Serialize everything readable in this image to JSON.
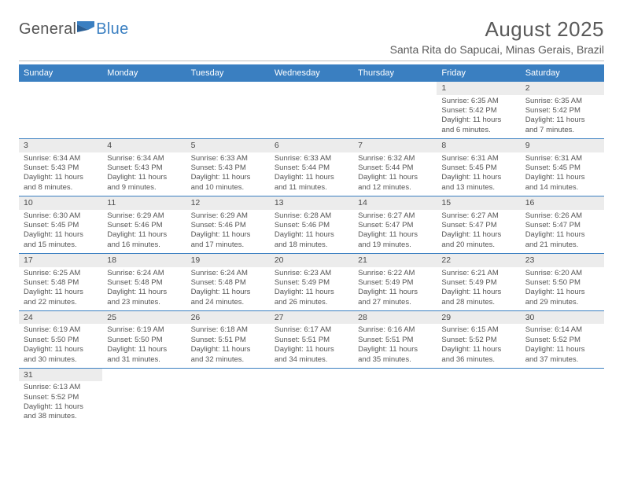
{
  "brand": {
    "word1": "General",
    "word2": "Blue"
  },
  "title": "August 2025",
  "location": "Santa Rita do Sapucai, Minas Gerais, Brazil",
  "colors": {
    "header_bg": "#3a7fc1",
    "header_fg": "#ffffff",
    "day_num_bg": "#ececec",
    "text": "#555555",
    "row_border": "#3a7fc1"
  },
  "weekdays": [
    "Sunday",
    "Monday",
    "Tuesday",
    "Wednesday",
    "Thursday",
    "Friday",
    "Saturday"
  ],
  "weeks": [
    [
      null,
      null,
      null,
      null,
      null,
      {
        "n": "1",
        "sr": "6:35 AM",
        "ss": "5:42 PM",
        "dl": "11 hours and 6 minutes."
      },
      {
        "n": "2",
        "sr": "6:35 AM",
        "ss": "5:42 PM",
        "dl": "11 hours and 7 minutes."
      }
    ],
    [
      {
        "n": "3",
        "sr": "6:34 AM",
        "ss": "5:43 PM",
        "dl": "11 hours and 8 minutes."
      },
      {
        "n": "4",
        "sr": "6:34 AM",
        "ss": "5:43 PM",
        "dl": "11 hours and 9 minutes."
      },
      {
        "n": "5",
        "sr": "6:33 AM",
        "ss": "5:43 PM",
        "dl": "11 hours and 10 minutes."
      },
      {
        "n": "6",
        "sr": "6:33 AM",
        "ss": "5:44 PM",
        "dl": "11 hours and 11 minutes."
      },
      {
        "n": "7",
        "sr": "6:32 AM",
        "ss": "5:44 PM",
        "dl": "11 hours and 12 minutes."
      },
      {
        "n": "8",
        "sr": "6:31 AM",
        "ss": "5:45 PM",
        "dl": "11 hours and 13 minutes."
      },
      {
        "n": "9",
        "sr": "6:31 AM",
        "ss": "5:45 PM",
        "dl": "11 hours and 14 minutes."
      }
    ],
    [
      {
        "n": "10",
        "sr": "6:30 AM",
        "ss": "5:45 PM",
        "dl": "11 hours and 15 minutes."
      },
      {
        "n": "11",
        "sr": "6:29 AM",
        "ss": "5:46 PM",
        "dl": "11 hours and 16 minutes."
      },
      {
        "n": "12",
        "sr": "6:29 AM",
        "ss": "5:46 PM",
        "dl": "11 hours and 17 minutes."
      },
      {
        "n": "13",
        "sr": "6:28 AM",
        "ss": "5:46 PM",
        "dl": "11 hours and 18 minutes."
      },
      {
        "n": "14",
        "sr": "6:27 AM",
        "ss": "5:47 PM",
        "dl": "11 hours and 19 minutes."
      },
      {
        "n": "15",
        "sr": "6:27 AM",
        "ss": "5:47 PM",
        "dl": "11 hours and 20 minutes."
      },
      {
        "n": "16",
        "sr": "6:26 AM",
        "ss": "5:47 PM",
        "dl": "11 hours and 21 minutes."
      }
    ],
    [
      {
        "n": "17",
        "sr": "6:25 AM",
        "ss": "5:48 PM",
        "dl": "11 hours and 22 minutes."
      },
      {
        "n": "18",
        "sr": "6:24 AM",
        "ss": "5:48 PM",
        "dl": "11 hours and 23 minutes."
      },
      {
        "n": "19",
        "sr": "6:24 AM",
        "ss": "5:48 PM",
        "dl": "11 hours and 24 minutes."
      },
      {
        "n": "20",
        "sr": "6:23 AM",
        "ss": "5:49 PM",
        "dl": "11 hours and 26 minutes."
      },
      {
        "n": "21",
        "sr": "6:22 AM",
        "ss": "5:49 PM",
        "dl": "11 hours and 27 minutes."
      },
      {
        "n": "22",
        "sr": "6:21 AM",
        "ss": "5:49 PM",
        "dl": "11 hours and 28 minutes."
      },
      {
        "n": "23",
        "sr": "6:20 AM",
        "ss": "5:50 PM",
        "dl": "11 hours and 29 minutes."
      }
    ],
    [
      {
        "n": "24",
        "sr": "6:19 AM",
        "ss": "5:50 PM",
        "dl": "11 hours and 30 minutes."
      },
      {
        "n": "25",
        "sr": "6:19 AM",
        "ss": "5:50 PM",
        "dl": "11 hours and 31 minutes."
      },
      {
        "n": "26",
        "sr": "6:18 AM",
        "ss": "5:51 PM",
        "dl": "11 hours and 32 minutes."
      },
      {
        "n": "27",
        "sr": "6:17 AM",
        "ss": "5:51 PM",
        "dl": "11 hours and 34 minutes."
      },
      {
        "n": "28",
        "sr": "6:16 AM",
        "ss": "5:51 PM",
        "dl": "11 hours and 35 minutes."
      },
      {
        "n": "29",
        "sr": "6:15 AM",
        "ss": "5:52 PM",
        "dl": "11 hours and 36 minutes."
      },
      {
        "n": "30",
        "sr": "6:14 AM",
        "ss": "5:52 PM",
        "dl": "11 hours and 37 minutes."
      }
    ],
    [
      {
        "n": "31",
        "sr": "6:13 AM",
        "ss": "5:52 PM",
        "dl": "11 hours and 38 minutes."
      },
      null,
      null,
      null,
      null,
      null,
      null
    ]
  ],
  "labels": {
    "sunrise": "Sunrise:",
    "sunset": "Sunset:",
    "daylight": "Daylight:"
  }
}
